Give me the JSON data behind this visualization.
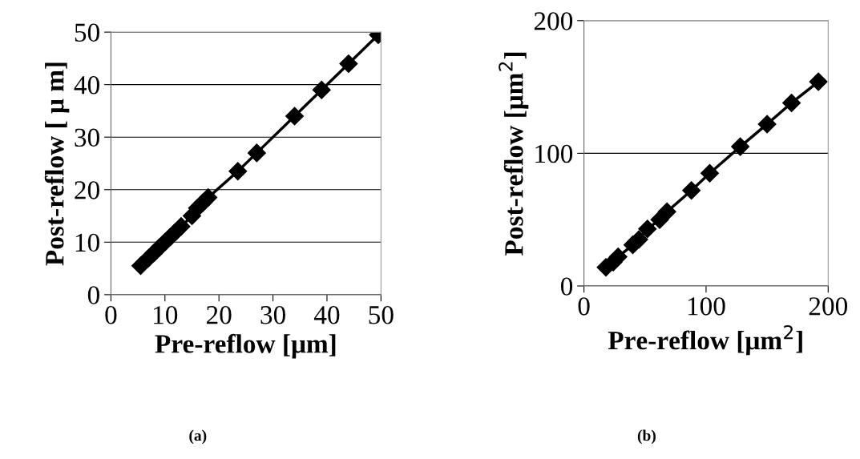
{
  "chart_data": [
    {
      "type": "line",
      "xlabel": "Pre-reflow [μm]",
      "ylabel": "Post-reflow [ μ m]",
      "annotations": [
        "(a)"
      ],
      "marker": "diamond",
      "line_style": "solid",
      "grid": "y",
      "series": [
        {
          "color": "#000000",
          "x": [
            5.5,
            7,
            8,
            9,
            10,
            11,
            12,
            13,
            15,
            16,
            17,
            18,
            23.5,
            27,
            34,
            39,
            44,
            49.5
          ],
          "values": [
            5.5,
            7,
            8,
            9,
            10,
            11,
            12,
            13,
            15,
            16.5,
            17.5,
            18.5,
            23.5,
            27,
            34,
            39,
            44,
            49.5
          ]
        }
      ],
      "xlim": [
        0,
        50
      ],
      "xticks": [
        0,
        10,
        20,
        30,
        40,
        50
      ],
      "ylim": [
        0,
        50
      ],
      "yticks": [
        0,
        10,
        20,
        30,
        40,
        50
      ]
    },
    {
      "type": "line",
      "xlabel": "Pre-reflow [μm$^{2}$]",
      "ylabel": "Post-reflow [μm$^{2}$]",
      "annotations": [
        "(b)"
      ],
      "marker": "diamond",
      "line_style": "solid",
      "grid": "y",
      "series": [
        {
          "color": "#000000",
          "x": [
            18,
            24,
            28,
            40,
            45,
            52,
            62,
            68,
            88,
            103,
            128,
            150,
            170,
            192
          ],
          "values": [
            14,
            18,
            22,
            31,
            35,
            43,
            50,
            56,
            72,
            85,
            105,
            122,
            138,
            154
          ]
        }
      ],
      "xlim": [
        0,
        200
      ],
      "xticks": [
        0,
        100,
        200
      ],
      "ylim": [
        0,
        200
      ],
      "yticks": [
        0,
        100,
        200
      ]
    }
  ]
}
